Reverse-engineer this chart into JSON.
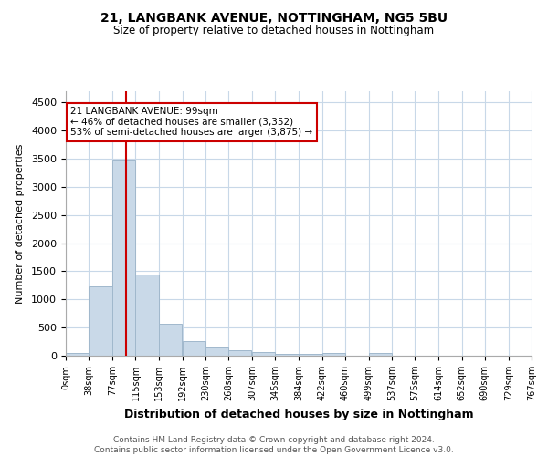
{
  "title1": "21, LANGBANK AVENUE, NOTTINGHAM, NG5 5BU",
  "title2": "Size of property relative to detached houses in Nottingham",
  "xlabel": "Distribution of detached houses by size in Nottingham",
  "ylabel": "Number of detached properties",
  "footer1": "Contains HM Land Registry data © Crown copyright and database right 2024.",
  "footer2": "Contains public sector information licensed under the Open Government Licence v3.0.",
  "property_size": 99,
  "property_label": "21 LANGBANK AVENUE: 99sqm",
  "annotation_line1": "← 46% of detached houses are smaller (3,352)",
  "annotation_line2": "53% of semi-detached houses are larger (3,875) →",
  "bar_left_edges": [
    0,
    38,
    77,
    115,
    153,
    192,
    230,
    268,
    307,
    345,
    384,
    422,
    460,
    499,
    537,
    575,
    614,
    652,
    690,
    729
  ],
  "bar_heights": [
    50,
    1230,
    3480,
    1450,
    570,
    255,
    145,
    90,
    60,
    40,
    30,
    55,
    5,
    45,
    0,
    0,
    0,
    0,
    0,
    0
  ],
  "bin_width": 38,
  "bar_color": "#c9d9e8",
  "bar_edge_color": "#a0b8cc",
  "red_line_color": "#cc0000",
  "annotation_box_color": "#cc0000",
  "background_color": "#ffffff",
  "grid_color": "#c8d8e8",
  "ylim": [
    0,
    4700
  ],
  "xlim": [
    0,
    767
  ],
  "yticks": [
    0,
    500,
    1000,
    1500,
    2000,
    2500,
    3000,
    3500,
    4000,
    4500
  ],
  "xtick_labels": [
    "0sqm",
    "38sqm",
    "77sqm",
    "115sqm",
    "153sqm",
    "192sqm",
    "230sqm",
    "268sqm",
    "307sqm",
    "345sqm",
    "384sqm",
    "422sqm",
    "460sqm",
    "499sqm",
    "537sqm",
    "575sqm",
    "614sqm",
    "652sqm",
    "690sqm",
    "729sqm",
    "767sqm"
  ],
  "xtick_positions": [
    0,
    38,
    77,
    115,
    153,
    192,
    230,
    268,
    307,
    345,
    384,
    422,
    460,
    499,
    537,
    575,
    614,
    652,
    690,
    729,
    767
  ]
}
